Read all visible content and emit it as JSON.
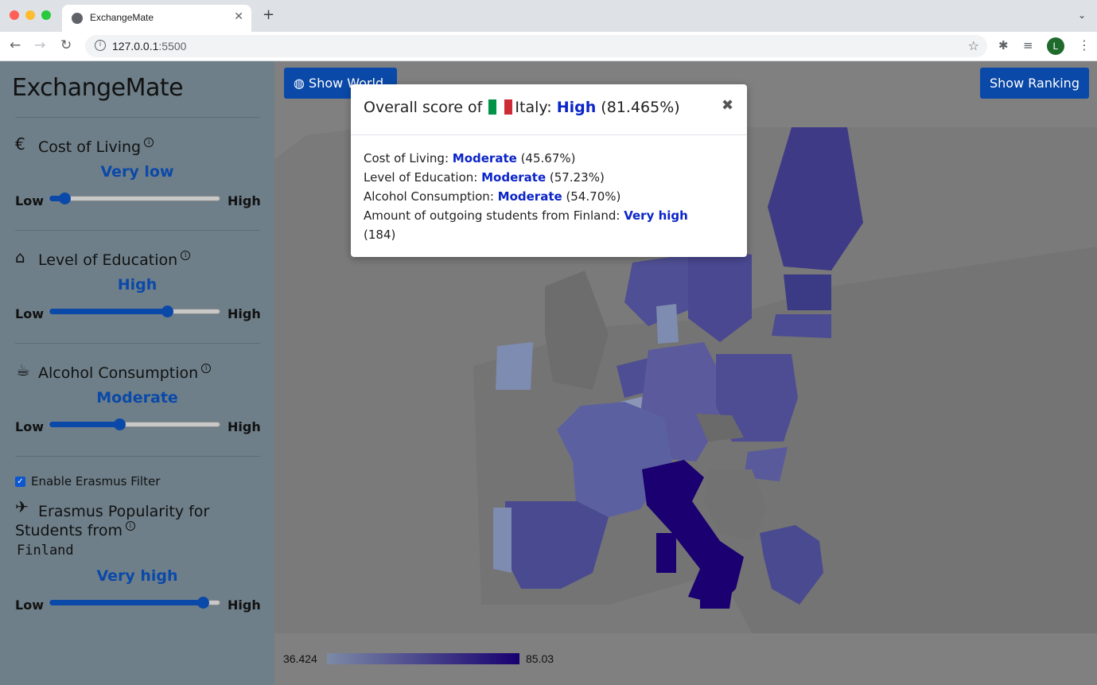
{
  "browser": {
    "tab_title": "ExchangeMate",
    "tab_close": "✕",
    "new_tab": "+",
    "tab_menu": "⌄",
    "url_host": "127.0.0.1",
    "url_port": ":5500",
    "avatar_letter": "L"
  },
  "sidebar": {
    "brand": "ExchangeMate",
    "sections": [
      {
        "icon": "euro-icon",
        "title": "Cost of Living",
        "value": "Very low",
        "slider": 0.09
      },
      {
        "icon": "graduation-cap-icon",
        "title": "Level of Education",
        "value": "High",
        "slider": 0.69
      },
      {
        "icon": "beer-mug-icon",
        "title": "Alcohol Consumption",
        "value": "Moderate",
        "slider": 0.41
      }
    ],
    "low_label": "Low",
    "high_label": "High",
    "erasmus_checkbox_label": "Enable Erasmus Filter",
    "erasmus_checked": true,
    "erasmus_title_line1": "Erasmus Popularity for",
    "erasmus_title_line2": "Students from",
    "erasmus_country": "Finland",
    "erasmus_value": "Very high",
    "erasmus_slider": 0.9
  },
  "main": {
    "show_world_label": "Show World",
    "show_ranking_label": "Show Ranking",
    "legend_min": "36.424",
    "legend_max": "85.03"
  },
  "modal": {
    "title_prefix": "Overall score of",
    "country": "Italy",
    "overall_level": "High",
    "overall_pct": "(81.465%)",
    "close": "✖",
    "rows": [
      {
        "label": "Cost of Living:",
        "level": "Moderate",
        "value": "(45.67%)"
      },
      {
        "label": "Level of Education:",
        "level": "Moderate",
        "value": "(57.23%)"
      },
      {
        "label": "Alcohol Consumption:",
        "level": "Moderate",
        "value": "(54.70%)"
      },
      {
        "label": "Amount of outgoing students from Finland:",
        "level": "Very high",
        "value": "(184)"
      }
    ]
  },
  "colors": {
    "accent": "#0b49a8",
    "highlight": "#0b24c9",
    "italy": "#1a0070",
    "map_dark": "#3f3c8c",
    "map_mid": "#5a5f9e",
    "map_light": "#7d8cb0",
    "land_gray": "#d7d7d7"
  }
}
